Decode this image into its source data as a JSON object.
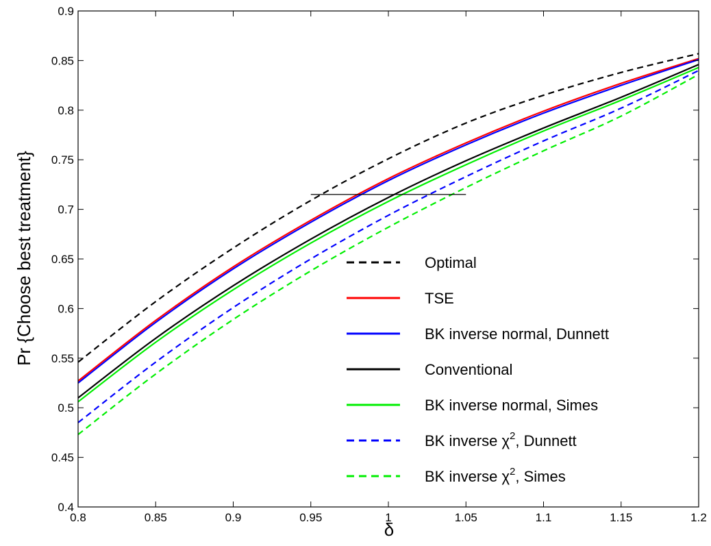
{
  "chart_data": {
    "type": "line",
    "title": "",
    "xlabel": "δ",
    "ylabel": "Pr {Choose best treatment}",
    "xlim": [
      0.8,
      1.2
    ],
    "ylim": [
      0.4,
      0.9
    ],
    "xticks": [
      0.8,
      0.85,
      0.9,
      0.95,
      1,
      1.05,
      1.1,
      1.15,
      1.2
    ],
    "xtick_labels": [
      "0.8",
      "0.85",
      "0.9",
      "0.95",
      "1",
      "1.05",
      "1.1",
      "1.15",
      "1.2"
    ],
    "yticks": [
      0.4,
      0.45,
      0.5,
      0.55,
      0.6,
      0.65,
      0.7,
      0.75,
      0.8,
      0.85,
      0.9
    ],
    "ytick_labels": [
      "0.4",
      "0.45",
      "0.5",
      "0.55",
      "0.6",
      "0.65",
      "0.7",
      "0.75",
      "0.8",
      "0.85",
      "0.9"
    ],
    "grid": false,
    "legend_position": "bottom-right",
    "x": [
      0.8,
      0.85,
      0.9,
      0.95,
      1.0,
      1.05,
      1.1,
      1.15,
      1.2
    ],
    "series": [
      {
        "name": "Optimal",
        "name_sup": "",
        "name_suffix": "",
        "color": "#000000",
        "dash": "dashed",
        "values": [
          0.546,
          0.607,
          0.661,
          0.709,
          0.751,
          0.787,
          0.815,
          0.838,
          0.857
        ]
      },
      {
        "name": "TSE",
        "name_sup": "",
        "name_suffix": "",
        "color": "#ff0000",
        "dash": "solid",
        "values": [
          0.527,
          0.588,
          0.642,
          0.689,
          0.731,
          0.767,
          0.799,
          0.827,
          0.852
        ]
      },
      {
        "name": "BK inverse normal, Dunnett",
        "name_sup": "",
        "name_suffix": "",
        "color": "#0000ff",
        "dash": "solid",
        "values": [
          0.525,
          0.586,
          0.64,
          0.687,
          0.729,
          0.765,
          0.797,
          0.825,
          0.851
        ]
      },
      {
        "name": "Conventional",
        "name_sup": "",
        "name_suffix": "",
        "color": "#000000",
        "dash": "solid",
        "values": [
          0.51,
          0.57,
          0.623,
          0.67,
          0.712,
          0.749,
          0.782,
          0.813,
          0.846
        ]
      },
      {
        "name": "BK inverse normal, Simes",
        "name_sup": "",
        "name_suffix": "",
        "color": "#00ee00",
        "dash": "solid",
        "values": [
          0.506,
          0.566,
          0.619,
          0.666,
          0.708,
          0.745,
          0.779,
          0.81,
          0.843
        ]
      },
      {
        "name": "BK inverse χ",
        "name_sup": "2",
        "name_suffix": ", Dunnett",
        "color": "#0000ff",
        "dash": "dashed",
        "values": [
          0.485,
          0.546,
          0.601,
          0.65,
          0.694,
          0.733,
          0.769,
          0.802,
          0.84
        ]
      },
      {
        "name": "BK inverse χ",
        "name_sup": "2",
        "name_suffix": ", Simes",
        "color": "#00ee00",
        "dash": "dashed",
        "values": [
          0.473,
          0.534,
          0.589,
          0.638,
          0.682,
          0.722,
          0.759,
          0.794,
          0.836
        ]
      }
    ],
    "annotations": [
      {
        "type": "horizontal-line",
        "y": 0.715,
        "x_start": 0.95,
        "x_end": 1.05,
        "color": "#000000"
      }
    ]
  }
}
